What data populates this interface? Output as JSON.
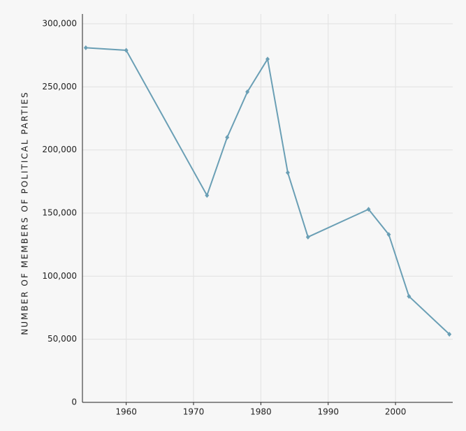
{
  "chart_data": {
    "type": "line",
    "y_label": "NUMBER OF MEMBERS OF POLITICAL PARTIES",
    "x": [
      1954,
      1960,
      1972,
      1975,
      1978,
      1981,
      1984,
      1987,
      1996,
      1999,
      2002,
      2008
    ],
    "series": [
      {
        "color": "#6a9fb5",
        "values": [
          281000,
          279000,
          164000,
          210000,
          246000,
          272000,
          182000,
          131000,
          153000,
          133000,
          84000,
          54000
        ]
      }
    ],
    "xlim": [
      1953.5,
      2008.5
    ],
    "xticks": [
      1960,
      1970,
      1980,
      1990,
      2000
    ],
    "ylim": [
      0,
      300000
    ],
    "yticks": [
      0,
      {
        "value": 50000,
        "label": "50,000"
      },
      {
        "value": 100000,
        "label": "100,000"
      },
      {
        "value": 150000,
        "label": "150,000"
      },
      {
        "value": 200000,
        "label": "200,000"
      },
      {
        "value": 250000,
        "label": "250,000"
      },
      {
        "value": 300000,
        "label": "300,000"
      }
    ],
    "grid": true
  }
}
